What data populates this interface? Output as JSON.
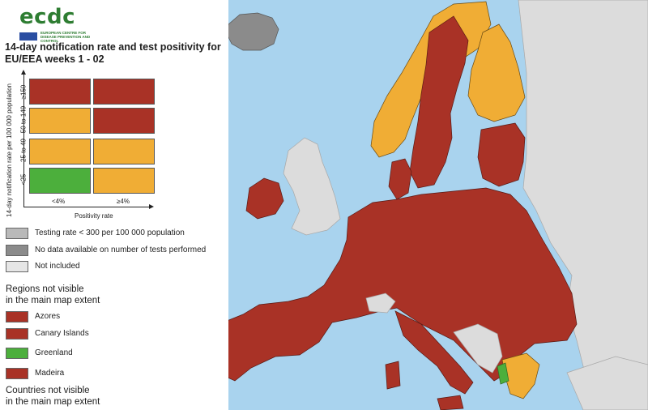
{
  "logo": {
    "text": "ecdc",
    "subtitle": "EUROPEAN CENTRE FOR DISEASE PREVENTION AND CONTROL"
  },
  "title": "14-day notification rate and test positivity for EU/EEA weeks 1 - 02",
  "matrix": {
    "y_axis_label": "14-day notification rate per 100 000 population",
    "x_axis_label": "Positivity rate",
    "row_labels": [
      "≥150",
      "50 to 149",
      "25 to 49",
      "<25"
    ],
    "col_labels": [
      "<4%",
      "≥4%"
    ],
    "cells": [
      [
        "dark-red",
        "dark-red"
      ],
      [
        "orange",
        "dark-red"
      ],
      [
        "orange",
        "orange"
      ],
      [
        "green",
        "orange"
      ]
    ]
  },
  "legend": {
    "items": [
      {
        "label": "Testing rate < 300 per 100 000 population",
        "color": "#b9b9b9"
      },
      {
        "label": "No data available on number of tests performed",
        "color": "#8b8b8b"
      },
      {
        "label": "Not included",
        "color": "#e6e6e6"
      }
    ]
  },
  "regions": {
    "heading": "Regions not visible in the main map extent",
    "heading_line1": "Regions not visible",
    "heading_line2": "in the main map extent",
    "items": [
      {
        "label": "Azores",
        "color": "#a93226"
      },
      {
        "label": "Canary Islands",
        "color": "#a93226"
      },
      {
        "label": "Greenland",
        "color": "#4caf3c"
      },
      {
        "label": "Madeira",
        "color": "#a93226"
      }
    ]
  },
  "countries": {
    "heading_line1": "Countries not visible",
    "heading_line2": "in the main map extent"
  },
  "colors": {
    "dark_red": "#a93226",
    "orange": "#f0ad35",
    "green": "#4caf3c",
    "not_included": "#dcdcdc",
    "no_data": "#8b8b8b",
    "sea": "#a9d3ee"
  }
}
